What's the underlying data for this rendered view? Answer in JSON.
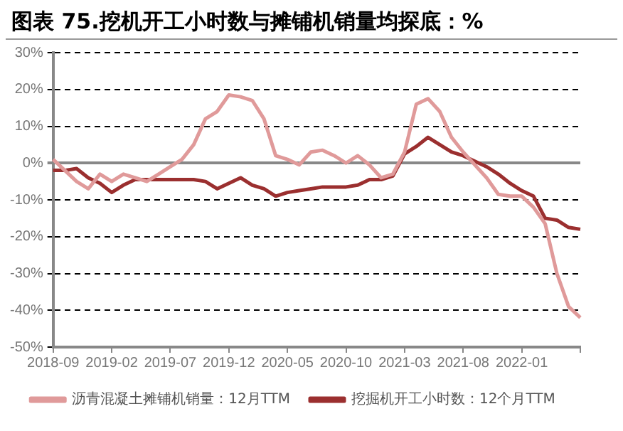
{
  "chart_data": {
    "type": "line",
    "title": "图表 75.挖机开工小时数与摊铺机销量均探底：%",
    "categories": [
      "2018-09",
      null,
      null,
      null,
      null,
      "2019-02",
      null,
      null,
      null,
      null,
      "2019-07",
      null,
      null,
      null,
      null,
      "2019-12",
      null,
      null,
      null,
      null,
      "2020-05",
      null,
      null,
      null,
      null,
      "2020-10",
      null,
      null,
      null,
      null,
      "2021-03",
      null,
      null,
      null,
      null,
      "2021-08",
      null,
      null,
      null,
      null,
      "2022-01",
      null,
      null,
      null,
      null,
      null
    ],
    "series": [
      {
        "name": "沥青混凝土摊铺机销量：12月TTM",
        "color": "#e09a9a",
        "values": [
          1,
          -2,
          -5,
          -7,
          -3,
          -5,
          -3,
          -4,
          -5,
          -3,
          -1,
          1,
          5,
          12,
          14,
          18.5,
          18,
          17,
          12,
          2,
          1,
          -0.5,
          3,
          3.5,
          2,
          0,
          2,
          -0.5,
          -4,
          -3,
          3,
          16,
          17.5,
          14,
          7,
          3,
          -0.5,
          -4,
          -8.5,
          -9,
          -9,
          -12,
          -16.5,
          -30,
          -39,
          -42
        ]
      },
      {
        "name": "挖掘机开工小时数：12个月TTM",
        "color": "#9b2f2f",
        "values": [
          -2,
          -2,
          -1.5,
          -4,
          -5.5,
          -8,
          -6,
          -4.5,
          -4.5,
          -4.5,
          -4.5,
          -4.5,
          -4.5,
          -5,
          -7,
          -5.5,
          -4,
          -6,
          -7,
          -9,
          -8,
          -7.5,
          -7,
          -6.5,
          -6.5,
          -6.5,
          -6,
          -4.5,
          -4.5,
          -3.5,
          2.5,
          4.5,
          7,
          5,
          3,
          2,
          0.5,
          -1,
          -3,
          -5.5,
          -7.5,
          -9,
          -15,
          -15.5,
          -17.5,
          -18
        ]
      }
    ],
    "ylim": [
      -50,
      30
    ],
    "yticks": [
      {
        "value": 30,
        "label": "30%"
      },
      {
        "value": 20,
        "label": "20%"
      },
      {
        "value": 10,
        "label": "10%"
      },
      {
        "value": 0,
        "label": "0%"
      },
      {
        "value": -10,
        "label": "-10%"
      },
      {
        "value": -20,
        "label": "-20%"
      },
      {
        "value": -30,
        "label": "-30%"
      },
      {
        "value": -40,
        "label": "-40%"
      },
      {
        "value": -50,
        "label": "-50%"
      }
    ],
    "grid": "y",
    "legend": "bottom",
    "marker": "none",
    "line_style": "solid"
  }
}
